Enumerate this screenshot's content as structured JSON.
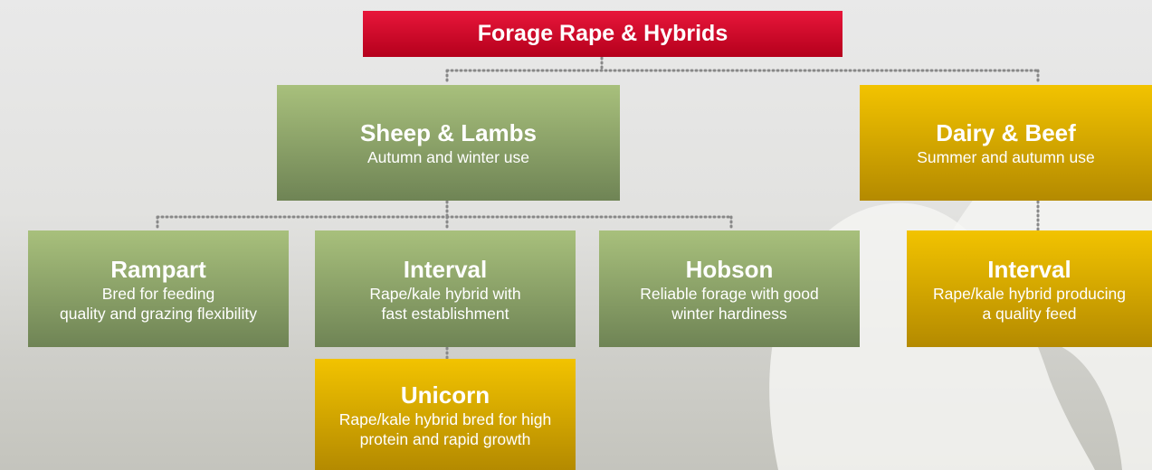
{
  "title": "Forage Rape & Hybrids",
  "nodes": [
    {
      "title": "Sheep & Lambs",
      "description": [
        "Autumn and winter use"
      ]
    },
    {
      "title": "Dairy & Beef",
      "description": [
        "Summer and autumn use"
      ]
    },
    {
      "title": "Rampart",
      "description": [
        "Bred for feeding",
        "quality and grazing flexibility"
      ]
    },
    {
      "title": "Interval",
      "description": [
        "Rape/kale hybrid with",
        "fast establishment"
      ]
    },
    {
      "title": "Hobson",
      "description": [
        "Reliable forage with good",
        "winter hardiness"
      ]
    },
    {
      "title": "Interval",
      "description": [
        "Rape/kale hybrid producing",
        "a quality feed"
      ]
    },
    {
      "title": "Unicorn",
      "description": [
        "Rape/kale hybrid bred for high",
        "protein and rapid growth"
      ]
    }
  ]
}
